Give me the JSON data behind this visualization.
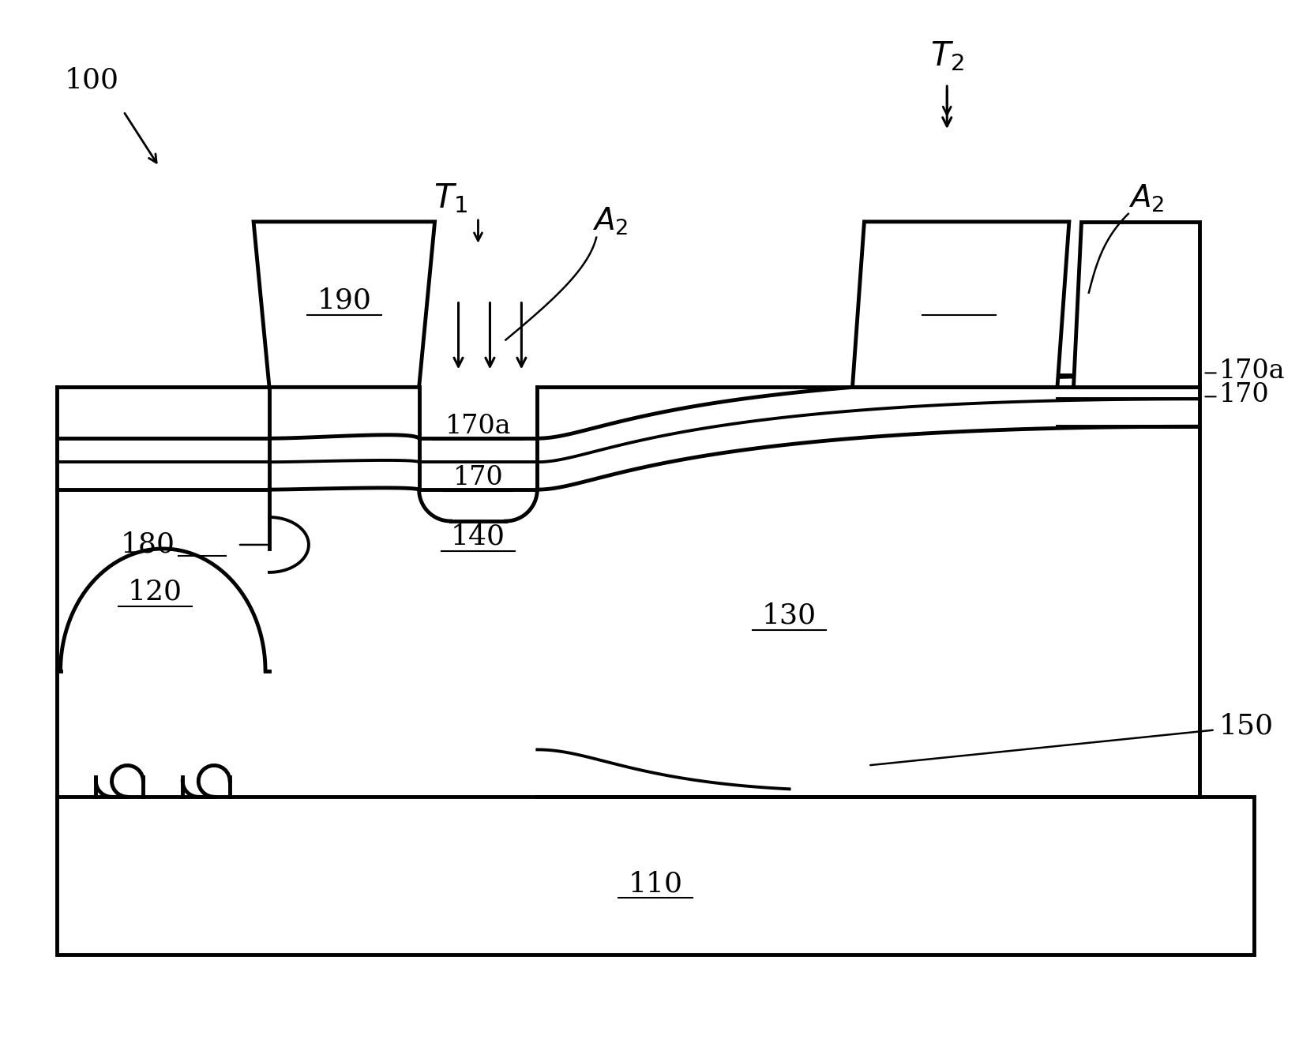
{
  "bg_color": "#ffffff",
  "lc": "#000000",
  "lw": 2.8,
  "tlw": 3.5,
  "fig_width": 16.65,
  "fig_height": 13.4,
  "dpi": 100
}
